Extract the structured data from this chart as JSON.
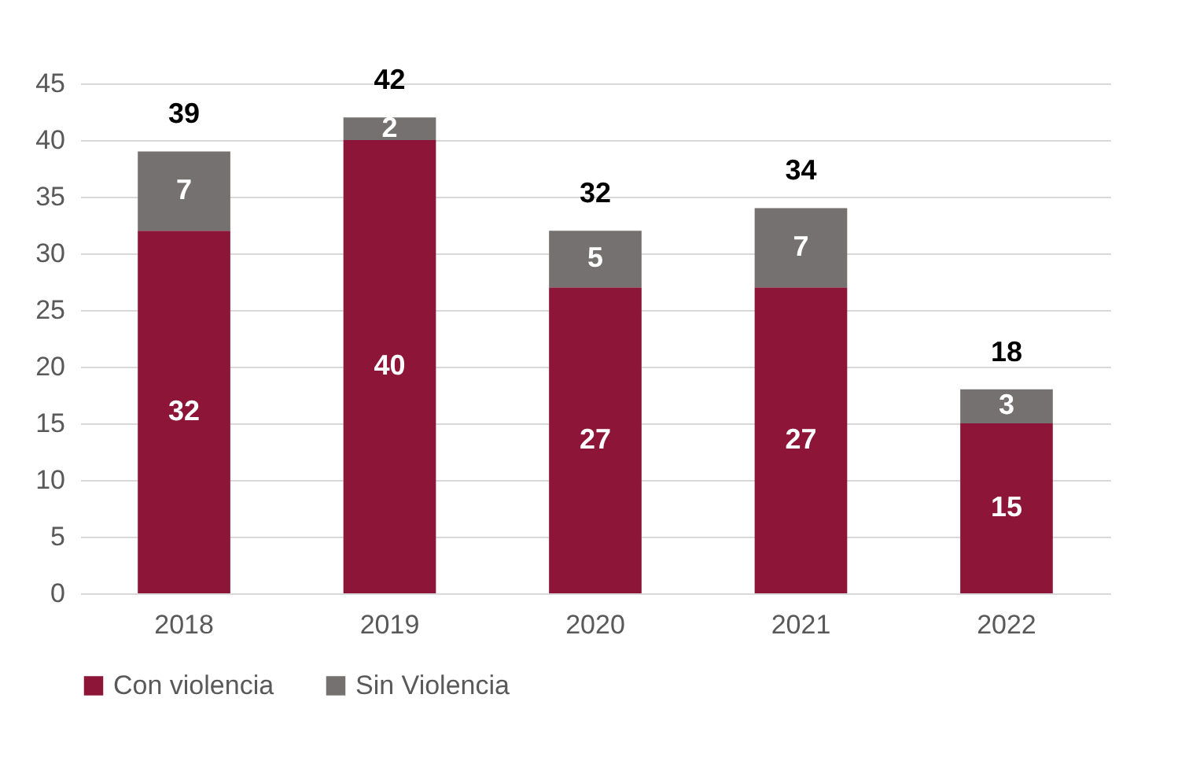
{
  "chart_data": {
    "type": "bar",
    "stacked": true,
    "categories": [
      "2018",
      "2019",
      "2020",
      "2021",
      "2022"
    ],
    "series": [
      {
        "name": "Con violencia",
        "color": "#8c1538",
        "values": [
          32,
          40,
          27,
          27,
          15
        ]
      },
      {
        "name": "Sin Violencia",
        "color": "#767171",
        "values": [
          7,
          2,
          5,
          7,
          3
        ]
      }
    ],
    "ylim": [
      0,
      45
    ],
    "yticks": [
      0,
      5,
      10,
      15,
      20,
      25,
      30,
      35,
      40,
      45
    ],
    "grid": "y",
    "legend": "bottom",
    "data_labels": true,
    "totals": [
      "39",
      "42",
      "32",
      "34",
      "18"
    ]
  }
}
